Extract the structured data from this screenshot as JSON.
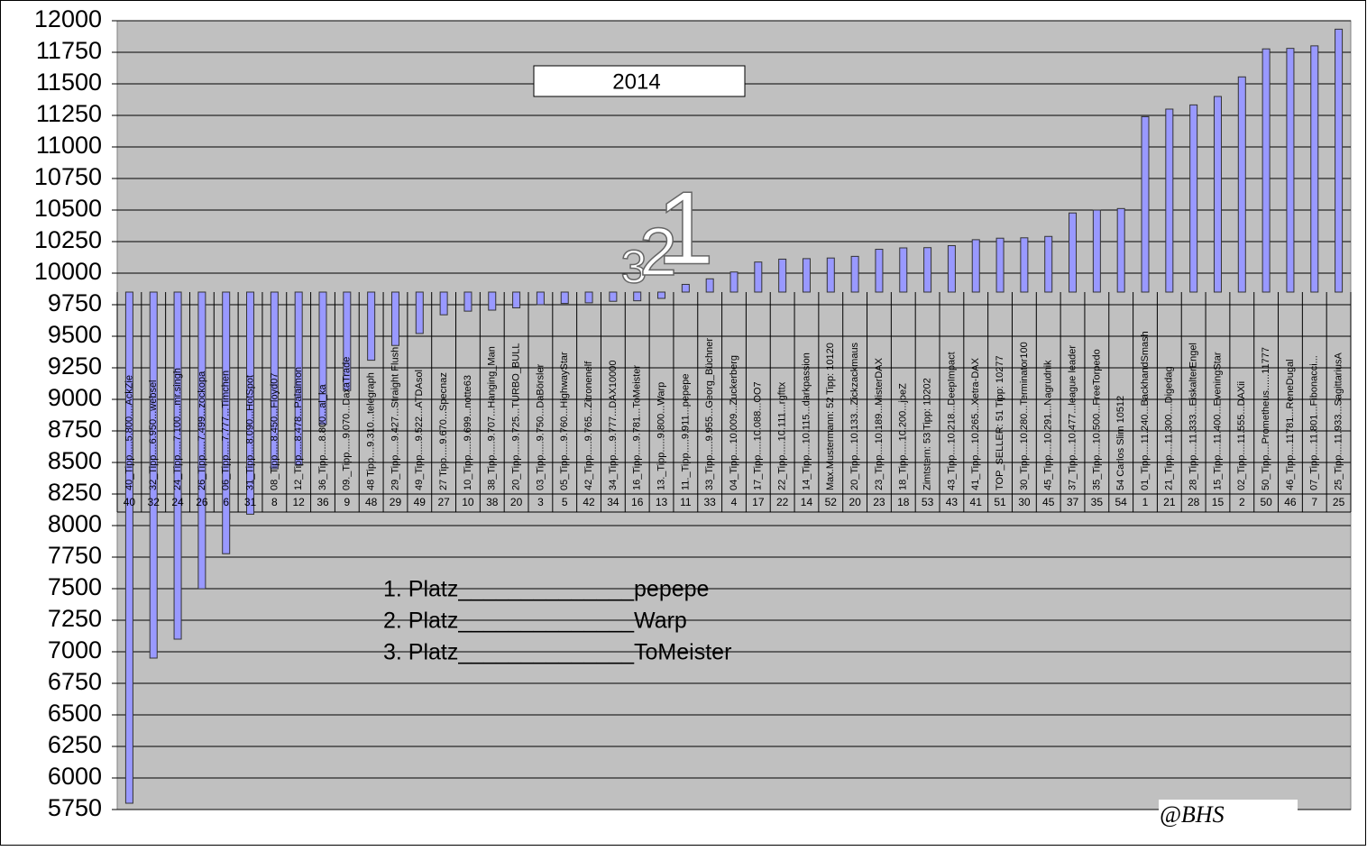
{
  "chart_data": {
    "type": "bar",
    "title": "2014",
    "categories": [
      "40",
      "32",
      "24",
      "26",
      "6",
      "31",
      "8",
      "12",
      "36",
      "9",
      "48",
      "29",
      "49",
      "27",
      "10",
      "38",
      "20",
      "3",
      "5",
      "42",
      "34",
      "16",
      "13",
      "11",
      "33",
      "4",
      "17",
      "22",
      "14",
      "52",
      "20",
      "23",
      "18",
      "53",
      "43",
      "41",
      "51",
      "30",
      "45",
      "37",
      "35",
      "54",
      "1",
      "21",
      "28",
      "15",
      "2",
      "50",
      "46",
      "7",
      "25"
    ],
    "labels": [
      "40_Tipp.....5.800....AckZie",
      "32_Tipp....6.950...websel",
      "24_Tipp.....7.100....mr.singh",
      "26_Tipp.....7.499...zockopa",
      "06_Tipp.....7.777...Timchen",
      "31_Tipp....8.090...HotSpot",
      "08_Tipp.....8.450...Floyd07",
      "12_Tipp.....8.478...Palaimon",
      "36_Tipp.....8.800...al_ka",
      "09._Tipp.....9.070...DaxaTrade",
      "48 Tipp....9.310...telegraph",
      "29_Tipp.....9.427...Straight Flush",
      "49_Tipp.....9.522...ATDAsol",
      "27 Tipp.....9.670...Specnaz",
      "10_Tipp.....9.699...notte63",
      "38_Tipp.....9.707...Hanging_Man",
      "20_Tipp.....9.725...TURBO_BULL",
      "03_Tipp.....9.750...DaBörsler",
      "05_Tipp.....9.760...HighwayStar",
      "42_Tipp.....9.765...Zitronenelf",
      "34_Tipp.....9.777...DAX10000",
      "16_Tipp.....9.781...ToMeister",
      "13._Tipp.....9.800...Warp",
      "11._Tipp.....9.911...pepepe",
      "33_Tipp.....9.955...Georg_Büchner",
      "04_Tipp....10.009...Zuckerberg",
      "17_Tipp.....10.088...OO7",
      "22_Tipp.....10.111...rgfttx",
      "14_Tipp....10.115...darkpassion",
      "Max.Mustermann: 52 Tipp: 10120",
      "20_Tipp....10.133...Zickzackmaus",
      "23_Tipp....10.189...MisterDAX",
      "18_Tipp.....10.200...joeZ",
      "Zimtstern: 53 Tipp: 10202",
      "43_Tipp....10.218...DeepImpact",
      "41_Tipp....10.265...Xetra-DAX",
      "TOP_SELLER: 51 Tipp: 10277",
      "30_Tipp....10.280...Terminator100",
      "45_Tipp....10.291...Nagrudnik",
      "37_Tipp....10.477...league leader",
      "35_Tipp....10.500...FreeTorpedo",
      "54 Carlos Slim 10512",
      "01_Tipp....11.240...BackhandSmash",
      "21_Tipp....11.300....Digedag",
      "28_Tipp....11.333...EiskalterEngel",
      "15_Tipp....11.400...EveningStar",
      "02_Tipp....11.555...DAXii",
      "50_Tipp....Prometheus......11777",
      "46_Tipp....11781...ReneDugal",
      "07_Tipp....11.801...Fibonacci...",
      "25_Tipp....11.933...SagittariusA"
    ],
    "values": [
      5800,
      6950,
      7100,
      7499,
      7777,
      8090,
      8450,
      8478,
      8800,
      9070,
      9310,
      9427,
      9522,
      9670,
      9699,
      9707,
      9725,
      9750,
      9760,
      9765,
      9777,
      9781,
      9800,
      9911,
      9955,
      10009,
      10088,
      10111,
      10115,
      10120,
      10133,
      10189,
      10200,
      10202,
      10218,
      10265,
      10277,
      10280,
      10291,
      10477,
      10500,
      10512,
      11240,
      11300,
      11333,
      11400,
      11555,
      11777,
      11781,
      11801,
      11933
    ],
    "bar_base": 9850,
    "color": "#9999ff",
    "ylim": [
      5750,
      12000
    ],
    "yticks": [
      5750,
      6000,
      6250,
      6500,
      6750,
      7000,
      7250,
      7500,
      7750,
      8000,
      8250,
      8500,
      8750,
      9000,
      9250,
      9500,
      9750,
      10000,
      10250,
      10500,
      10750,
      11000,
      11250,
      11500,
      11750,
      12000
    ],
    "grid": true,
    "annotations": [
      "3",
      "2",
      "1"
    ],
    "podium": [
      "1. Platz______________pepepe",
      "2. Platz______________Warp",
      "3. Platz______________ToMeister"
    ],
    "signature": "@BHS"
  }
}
